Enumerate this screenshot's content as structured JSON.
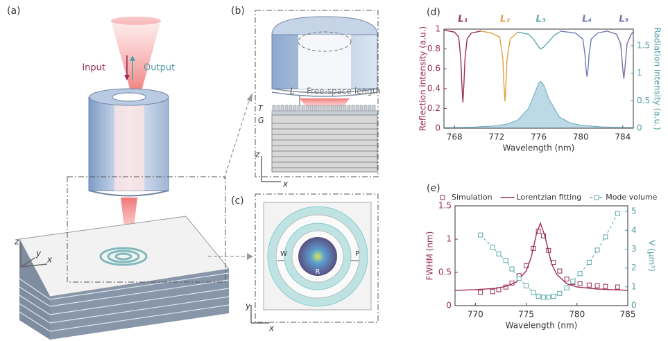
{
  "panel_a": {
    "label": "(a)",
    "input": "Input",
    "output": "Output",
    "axes": [
      "z",
      "y",
      "x"
    ]
  },
  "panel_b": {
    "label": "(b)",
    "L": "L",
    "free_space": "Free-space length",
    "T": "T",
    "G": "G",
    "axes": [
      "z",
      "x"
    ]
  },
  "panel_c": {
    "label": "(c)",
    "W": "W",
    "P": "P",
    "R": "R",
    "axes": [
      "y",
      "x"
    ]
  },
  "chart_data": [
    {
      "type": "line",
      "label": "(d)",
      "xlabel": "Wavelength (nm)",
      "ylabel": "Reflection intensity (a.u.)",
      "y2label": "Radiation intensity (a.u.)",
      "ycolor": "#9b2d55",
      "y2color": "#4f9fa6",
      "xlim": [
        767,
        785
      ],
      "xticks": [
        768,
        772,
        776,
        780,
        784
      ],
      "ylim": [
        0,
        1
      ],
      "yticks": [
        0,
        0.2,
        0.4,
        0.6,
        0.8,
        1
      ],
      "y2lim": [
        0,
        1.8
      ],
      "y2ticks": [
        0,
        0.5,
        1,
        1.5
      ],
      "series": [
        {
          "name": "L₁",
          "color": "#9b2d55",
          "style": "line",
          "x": [
            767,
            768,
            768.4,
            768.6,
            768.7,
            768.8,
            768.9,
            769,
            769.2,
            769.6,
            770.5
          ],
          "values": [
            0.99,
            0.97,
            0.92,
            0.7,
            0.45,
            0.26,
            0.45,
            0.7,
            0.9,
            0.96,
            0.98
          ]
        },
        {
          "name": "L₂",
          "color": "#e0a040",
          "style": "line",
          "x": [
            770.5,
            771.5,
            772.3,
            772.6,
            772.7,
            772.8,
            772.9,
            773,
            773.3,
            774
          ],
          "values": [
            0.98,
            0.96,
            0.92,
            0.7,
            0.45,
            0.27,
            0.45,
            0.7,
            0.9,
            0.97
          ]
        },
        {
          "name": "L₃",
          "color": "#5aa9a8",
          "style": "line",
          "x": [
            774,
            775,
            775.5,
            776,
            776.2,
            776.5,
            777,
            777.5,
            778
          ],
          "values": [
            0.97,
            0.95,
            0.9,
            0.82,
            0.8,
            0.82,
            0.88,
            0.94,
            0.97
          ]
        },
        {
          "name": "L₄",
          "color": "#6a7bb0",
          "style": "line",
          "x": [
            778,
            779.5,
            780.2,
            780.4,
            780.5,
            780.6,
            780.7,
            780.8,
            781,
            781.6,
            782.5
          ],
          "values": [
            0.98,
            0.96,
            0.9,
            0.75,
            0.6,
            0.52,
            0.6,
            0.75,
            0.9,
            0.96,
            0.98
          ]
        },
        {
          "name": "L₅",
          "color": "#7a6aaa",
          "style": "line",
          "x": [
            782.5,
            783.4,
            783.8,
            784,
            784.1,
            784.2,
            784.4,
            784.8,
            785
          ],
          "values": [
            0.98,
            0.95,
            0.85,
            0.6,
            0.5,
            0.6,
            0.85,
            0.95,
            0.97
          ]
        },
        {
          "color": "#6aa9bf",
          "fill": "#bcd9e6",
          "style": "area",
          "axis": "y2",
          "x": [
            767,
            768,
            770,
            772,
            773,
            774,
            775,
            775.5,
            776,
            776.2,
            776.5,
            777,
            778,
            779,
            780,
            782,
            785
          ],
          "values": [
            0.01,
            0.013,
            0.022,
            0.046,
            0.076,
            0.145,
            0.35,
            0.57,
            0.82,
            0.85,
            0.78,
            0.52,
            0.2,
            0.097,
            0.055,
            0.024,
            0.011
          ]
        }
      ]
    },
    {
      "type": "line",
      "label": "(e)",
      "xlabel": "Wavelength (nm)",
      "ylabel": "FWHM  (nm)",
      "y2label": "V (μm³)",
      "ycolor": "#9b2d55",
      "y2color": "#4f9fa6",
      "legend": "top",
      "xlim": [
        768,
        785
      ],
      "xticks": [
        770,
        775,
        780,
        785
      ],
      "ylim": [
        0,
        1.5
      ],
      "yticks": [
        0,
        0.5,
        1,
        1.5
      ],
      "y2lim": [
        0,
        5.3
      ],
      "y2ticks": [
        0,
        1,
        2,
        3,
        4,
        5
      ],
      "series": [
        {
          "name": "Simulation",
          "color": "#9b2d55",
          "style": "markers",
          "x": [
            770.5,
            771.7,
            772.3,
            773,
            773.6,
            774.3,
            775,
            775.7,
            776.2,
            776.7,
            777.2,
            777.7,
            778.3,
            779,
            779.6,
            780.3,
            781.2,
            782,
            782.8,
            784
          ],
          "values": [
            0.2,
            0.21,
            0.24,
            0.28,
            0.34,
            0.45,
            0.6,
            0.86,
            1.12,
            1.05,
            0.83,
            0.65,
            0.52,
            0.4,
            0.35,
            0.33,
            0.31,
            0.3,
            0.29,
            0.28
          ]
        },
        {
          "name": "Lorentzian fitting",
          "color": "#9b2d55",
          "style": "line",
          "x": [
            768,
            770,
            772,
            773,
            774,
            775,
            775.5,
            776,
            776.4,
            776.8,
            777.5,
            778,
            779,
            780,
            782,
            785
          ],
          "values": [
            0.23,
            0.24,
            0.26,
            0.29,
            0.35,
            0.52,
            0.73,
            1.07,
            1.24,
            1.07,
            0.63,
            0.47,
            0.33,
            0.28,
            0.25,
            0.23
          ]
        },
        {
          "name": "Mode volume",
          "color": "#5aa9a8",
          "style": "dashed-markers",
          "axis": "y2",
          "x": [
            770.5,
            771.7,
            772.3,
            773,
            773.6,
            774.3,
            775,
            775.7,
            776.2,
            776.7,
            777.2,
            777.7,
            778.3,
            779,
            779.6,
            780.3,
            781.2,
            782,
            782.8,
            784
          ],
          "values": [
            3.75,
            3.1,
            2.75,
            2.4,
            1.95,
            1.45,
            1.05,
            0.7,
            0.5,
            0.45,
            0.45,
            0.5,
            0.65,
            0.95,
            1.3,
            1.7,
            2.3,
            2.95,
            3.65,
            4.9
          ]
        }
      ]
    }
  ]
}
